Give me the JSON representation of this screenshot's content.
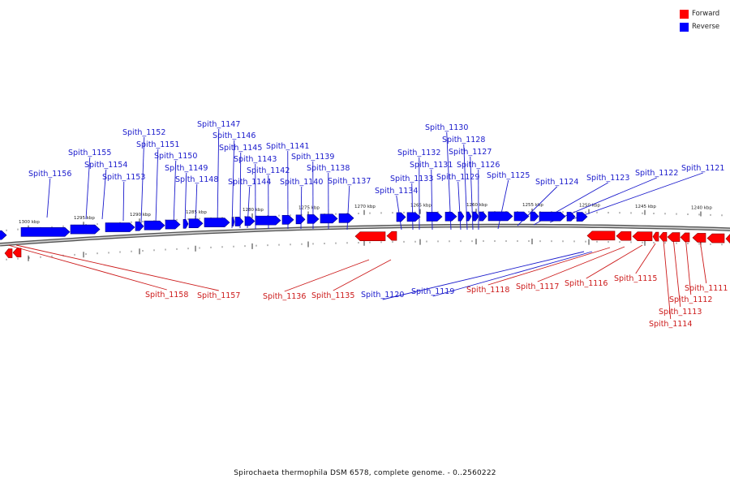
{
  "legend": {
    "items": [
      {
        "label": "Forward",
        "color": "#ff0000"
      },
      {
        "label": "Reverse",
        "color": "#0000ff"
      }
    ]
  },
  "caption": "Spirochaeta thermophila DSM 6578, complete genome. - 0..2560222",
  "colors": {
    "forward": "#ff0000",
    "reverse": "#0000ff",
    "backbone": "#888888"
  },
  "scale_labels": {
    "top": [
      "1300 kbp",
      "1295 kbp",
      "1290 kbp",
      "1285 kbp",
      "1280 kbp",
      "1275 kbp",
      "1270 kbp",
      "1265 kbp",
      "1260 kbp",
      "1255 kbp",
      "1250 kbp",
      "1245 kbp",
      "1240 kbp"
    ]
  },
  "genes": {
    "reverse_labels": [
      "Spith_1156",
      "Spith_1155",
      "Spith_1154",
      "Spith_1153",
      "Spith_1152",
      "Spith_1151",
      "Spith_1150",
      "Spith_1149",
      "Spith_1148",
      "Spith_1147",
      "Spith_1146",
      "Spith_1145",
      "Spith_1144",
      "Spith_1143",
      "Spith_1142",
      "Spith_1141",
      "Spith_1140",
      "Spith_1139",
      "Spith_1138",
      "Spith_1137",
      "Spith_1134",
      "Spith_1133",
      "Spith_1132",
      "Spith_1131",
      "Spith_1130",
      "Spith_1129",
      "Spith_1128",
      "Spith_1127",
      "Spith_1126",
      "Spith_1125",
      "Spith_1124",
      "Spith_1123",
      "Spith_1122",
      "Spith_1121",
      "Spith_1120",
      "Spith_1119"
    ],
    "forward_labels": [
      "Spith_1158",
      "Spith_1157",
      "Spith_1136",
      "Spith_1135",
      "Spith_1118",
      "Spith_1117",
      "Spith_1116",
      "Spith_1115",
      "Spith_1114",
      "Spith_1113",
      "Spith_1112",
      "Spith_1111"
    ]
  }
}
